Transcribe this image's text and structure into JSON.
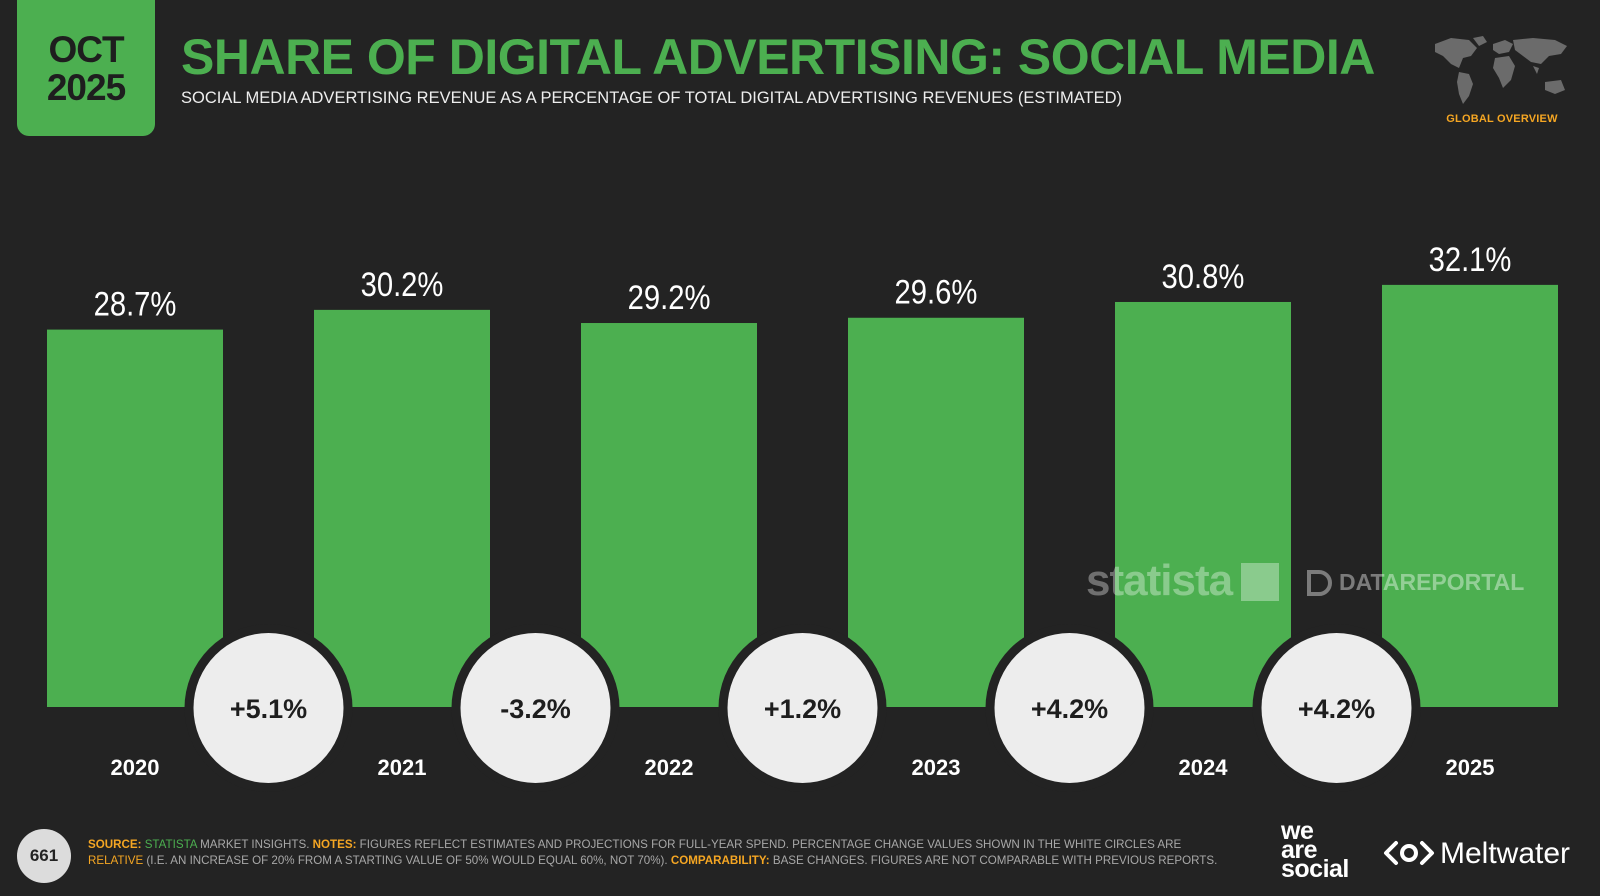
{
  "badge": {
    "month": "OCT",
    "year": "2025"
  },
  "header": {
    "title": "SHARE OF DIGITAL ADVERTISING: SOCIAL MEDIA",
    "subtitle": "SOCIAL MEDIA ADVERTISING REVENUE AS A PERCENTAGE OF TOTAL DIGITAL ADVERTISING REVENUES (ESTIMATED)",
    "region": "GLOBAL OVERVIEW"
  },
  "icons": {
    "region_map": "world-map-icon",
    "watermark_statista": "statista-logo",
    "watermark_dr": "datareportal-logo",
    "meltwater": "meltwater-logo-icon"
  },
  "colors": {
    "background": "#232323",
    "bar": "#4caf50",
    "bubble": "#ededed",
    "accent": "#f5a623"
  },
  "chart_data": {
    "type": "bar",
    "categories": [
      "2020",
      "2021",
      "2022",
      "2023",
      "2024",
      "2025"
    ],
    "values": [
      28.7,
      30.2,
      29.2,
      29.6,
      30.8,
      32.1
    ],
    "value_labels": [
      "28.7%",
      "30.2%",
      "29.2%",
      "29.6%",
      "30.8%",
      "32.1%"
    ],
    "changes": [
      "+5.1%",
      "-3.2%",
      "+1.2%",
      "+4.2%",
      "+4.2%"
    ],
    "title": "SHARE OF DIGITAL ADVERTISING: SOCIAL MEDIA",
    "xlabel": "",
    "ylabel": "",
    "grid": false,
    "legend": "none"
  },
  "watermarks": {
    "statista": "statista",
    "datareportal": "DATAREPORTAL"
  },
  "footer": {
    "page_number": "661",
    "source_key": "SOURCE:",
    "source_name": "STATISTA",
    "source_rest": " MARKET INSIGHTS. ",
    "notes_key": "NOTES:",
    "notes_text": " FIGURES REFLECT ESTIMATES AND PROJECTIONS FOR FULL-YEAR SPEND. PERCENTAGE CHANGE VALUES SHOWN IN THE WHITE CIRCLES ARE ",
    "notes_relative": "RELATIVE",
    "notes_tail": " (I.E. AN INCREASE OF 20% FROM A STARTING VALUE OF 50% WOULD EQUAL 60%, NOT 70%). ",
    "comparability_key": "COMPARABILITY:",
    "comparability_text": " BASE CHANGES. FIGURES ARE NOT COMPARABLE WITH PREVIOUS REPORTS."
  },
  "logos": {
    "we_are_social": [
      "we",
      "are",
      "social"
    ],
    "meltwater": "Meltwater"
  }
}
